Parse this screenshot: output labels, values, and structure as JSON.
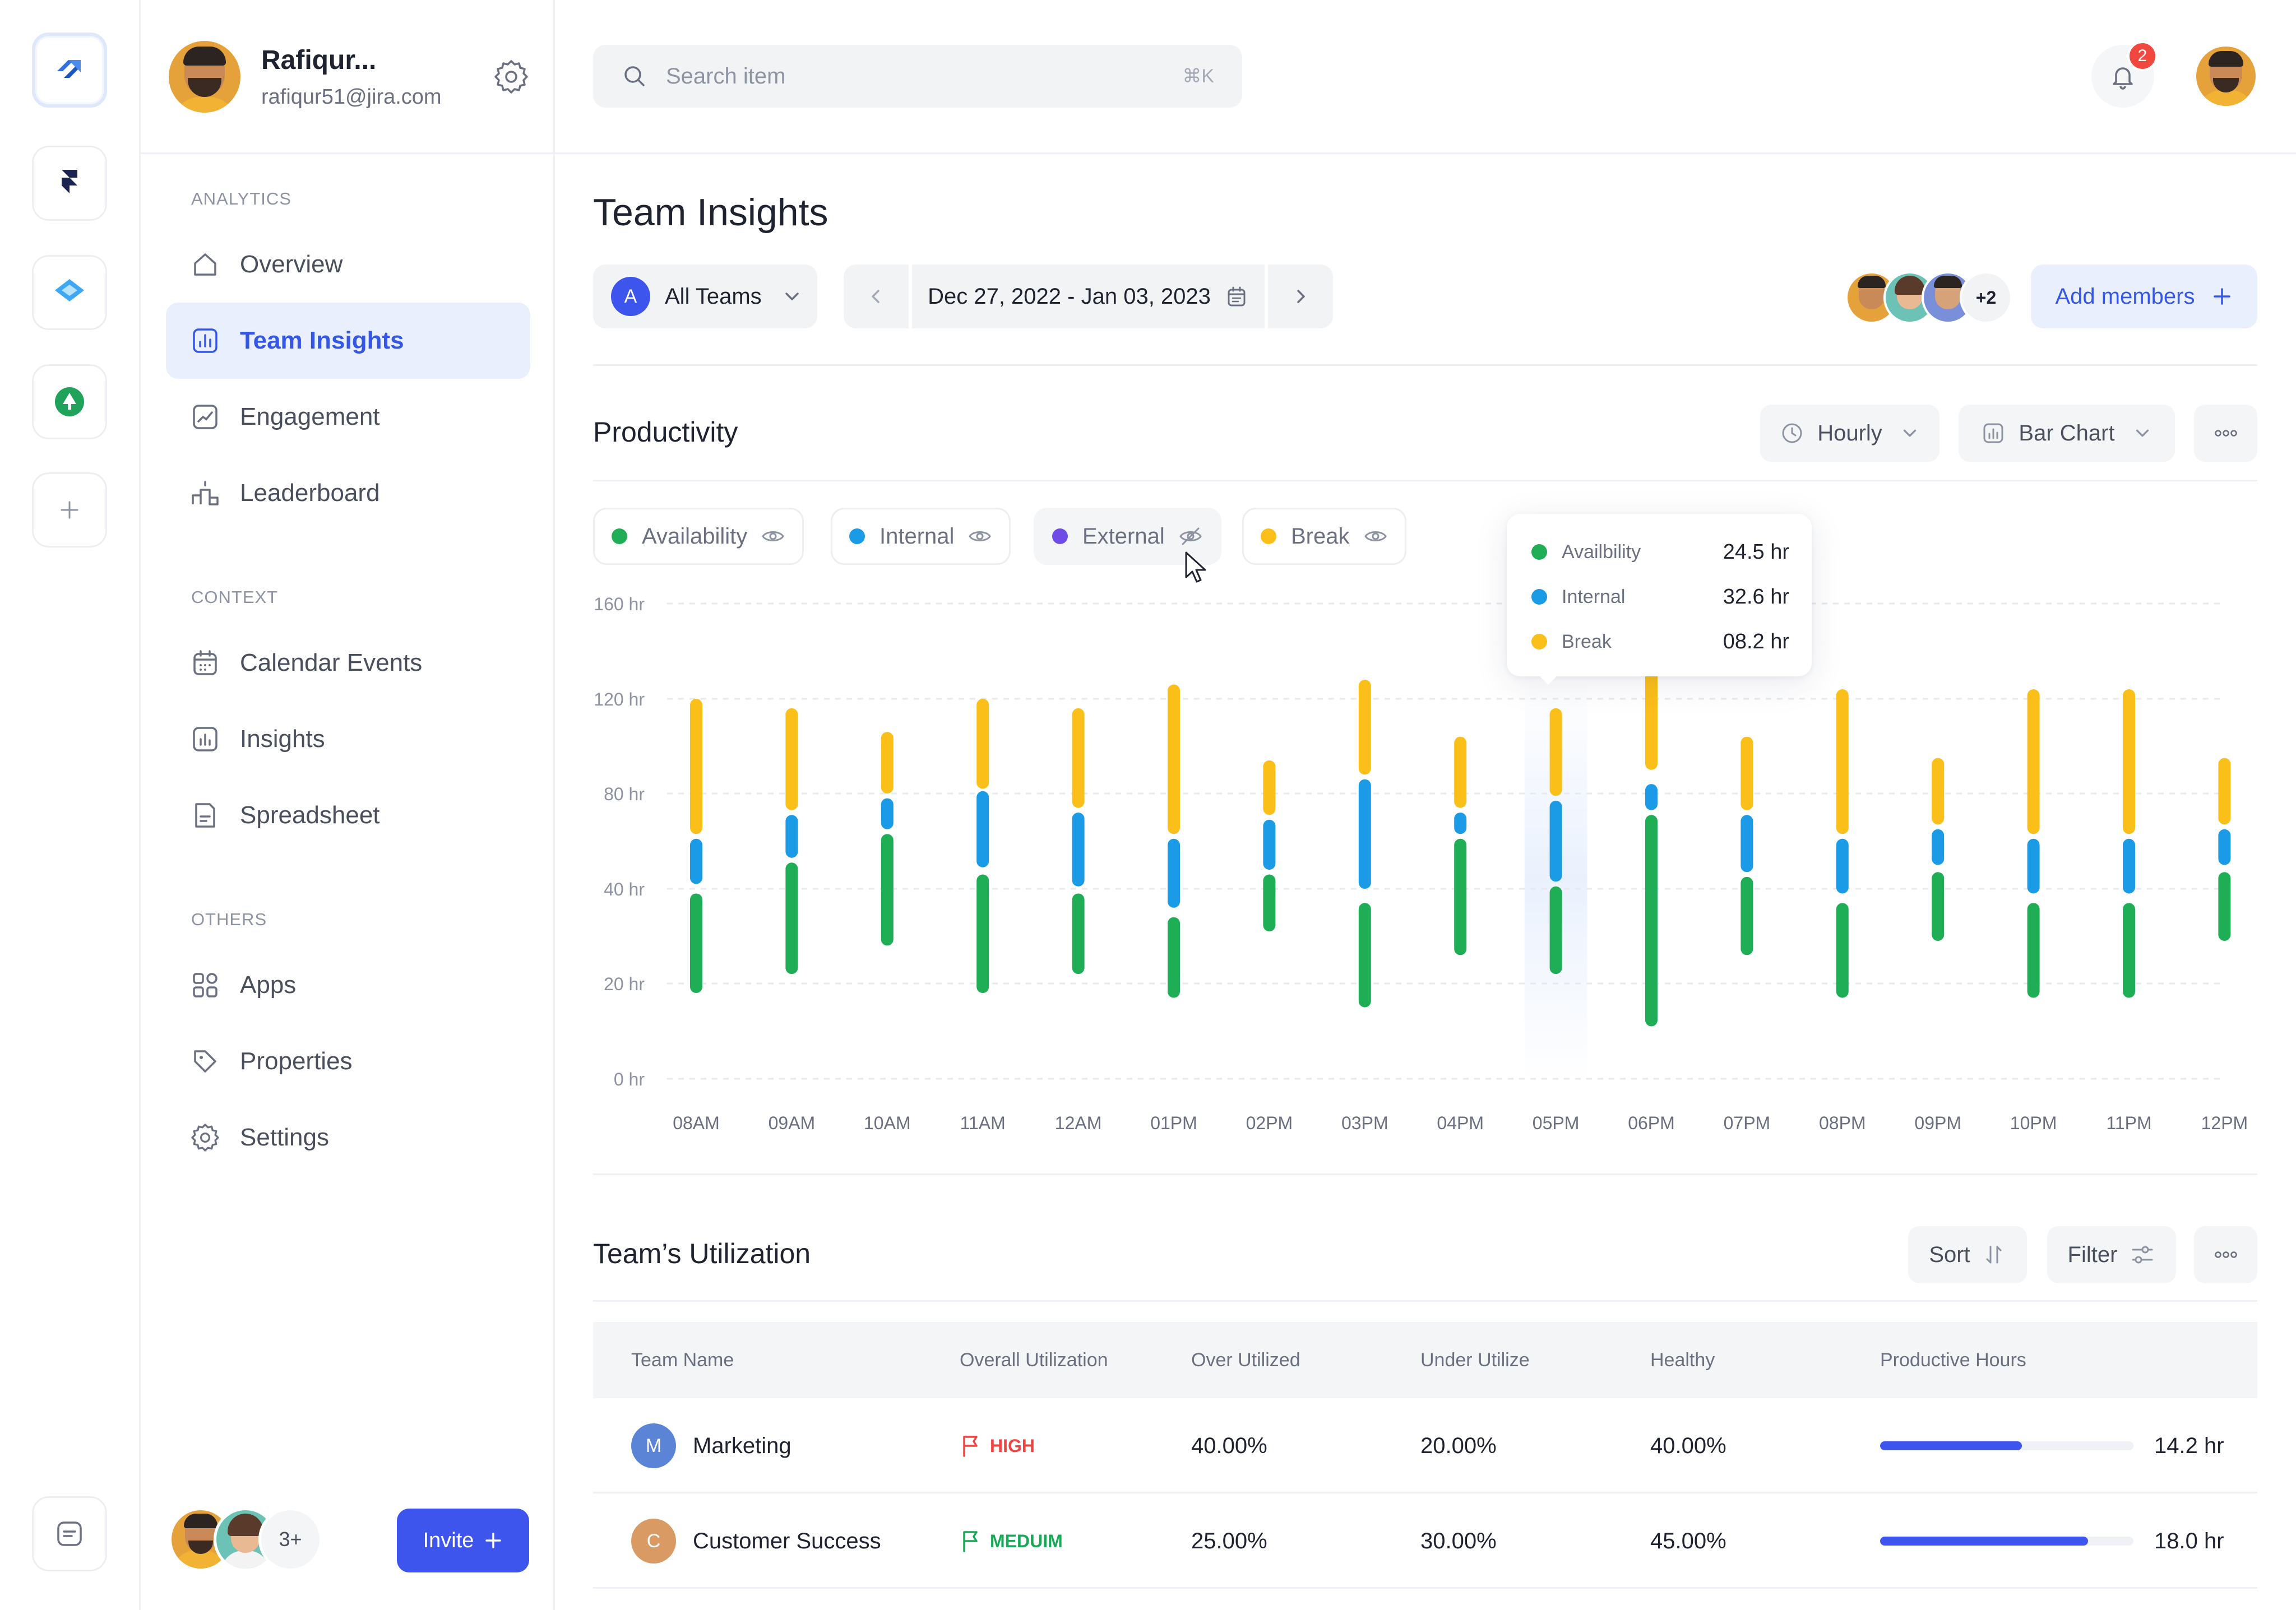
{
  "user": {
    "name": "Rafiqur...",
    "email": "rafiqur51@jira.com"
  },
  "search": {
    "placeholder": "Search item",
    "shortcut": "⌘K"
  },
  "notifications": {
    "count": "2"
  },
  "sidebar": {
    "sections": [
      {
        "label": "ANALYTICS",
        "items": [
          {
            "label": "Overview",
            "icon": "home-icon"
          },
          {
            "label": "Team Insights",
            "icon": "chart-square-icon",
            "active": true
          },
          {
            "label": "Engagement",
            "icon": "trend-icon"
          },
          {
            "label": "Leaderboard",
            "icon": "podium-icon"
          }
        ]
      },
      {
        "label": "CONTEXT",
        "items": [
          {
            "label": "Calendar Events",
            "icon": "calendar-icon"
          },
          {
            "label": "Insights",
            "icon": "bar-square-icon"
          },
          {
            "label": "Spreadsheet",
            "icon": "document-icon"
          }
        ]
      },
      {
        "label": "OTHERS",
        "items": [
          {
            "label": "Apps",
            "icon": "apps-grid-icon"
          },
          {
            "label": "Properties",
            "icon": "tag-icon"
          },
          {
            "label": "Settings",
            "icon": "gear-icon"
          }
        ]
      }
    ],
    "team_more": "3+",
    "invite_label": "Invite"
  },
  "page": {
    "title": "Team Insights",
    "team_letter": "A",
    "team_label": "All Teams",
    "date_range": "Dec 27, 2022 - Jan 03, 2023",
    "members_more": "+2",
    "add_members_label": "Add members"
  },
  "productivity": {
    "title": "Productivity",
    "interval_label": "Hourly",
    "chart_type_label": "Bar Chart",
    "legend": [
      {
        "label": "Availability",
        "color": "#1fae55",
        "visible": true
      },
      {
        "label": "Internal",
        "color": "#1b9be6",
        "visible": true
      },
      {
        "label": "External",
        "color": "#6f4ce8",
        "visible": false
      },
      {
        "label": "Break",
        "color": "#fbbf1a",
        "visible": true
      }
    ],
    "tooltip": {
      "rows": [
        {
          "label": "Availbility",
          "value": "24.5 hr",
          "color": "#1fae55"
        },
        {
          "label": "Internal",
          "value": "32.6 hr",
          "color": "#1b9be6"
        },
        {
          "label": "Break",
          "value": "08.2 hr",
          "color": "#fbbf1a"
        }
      ]
    }
  },
  "chart_data": {
    "type": "bar",
    "stacked": true,
    "highlighted_category": "05PM",
    "ylim": [
      0,
      160
    ],
    "y_ticks": [
      "0 hr",
      "20 hr",
      "40 hr",
      "80 hr",
      "120 hr",
      "160 hr"
    ],
    "grid": true,
    "categories": [
      "08AM",
      "09AM",
      "10AM",
      "11AM",
      "12AM",
      "01PM",
      "02PM",
      "03PM",
      "04PM",
      "05PM",
      "06PM",
      "07PM",
      "08PM",
      "09PM",
      "10PM",
      "11PM",
      "12PM"
    ],
    "series": [
      {
        "name": "Availability",
        "color": "#1fae55",
        "values": [
          [
            18,
            39
          ],
          [
            22,
            51
          ],
          [
            28,
            63
          ],
          [
            18,
            46
          ],
          [
            22,
            39
          ],
          [
            17,
            34
          ],
          [
            31,
            46
          ],
          [
            15,
            37
          ],
          [
            26,
            61
          ],
          [
            22,
            41
          ],
          [
            11,
            71
          ],
          [
            26,
            45
          ],
          [
            17,
            37
          ],
          [
            29,
            47
          ],
          [
            17,
            37
          ],
          [
            17,
            37
          ],
          [
            29,
            47
          ]
        ]
      },
      {
        "name": "Internal",
        "color": "#1b9be6",
        "values": [
          [
            42,
            61
          ],
          [
            53,
            71
          ],
          [
            65,
            78
          ],
          [
            49,
            81
          ],
          [
            41,
            72
          ],
          [
            36,
            61
          ],
          [
            48,
            69
          ],
          [
            40,
            86
          ],
          [
            63,
            72
          ],
          [
            43,
            77
          ],
          [
            73,
            84
          ],
          [
            47,
            71
          ],
          [
            39,
            61
          ],
          [
            50,
            65
          ],
          [
            39,
            61
          ],
          [
            39,
            61
          ],
          [
            50,
            65
          ]
        ]
      },
      {
        "name": "Break",
        "color": "#fbbf1a",
        "values": [
          [
            63,
            120
          ],
          [
            73,
            116
          ],
          [
            80,
            106
          ],
          [
            82,
            120
          ],
          [
            74,
            116
          ],
          [
            63,
            126
          ],
          [
            71,
            94
          ],
          [
            88,
            128
          ],
          [
            74,
            104
          ],
          [
            79,
            116
          ],
          [
            90,
            140
          ],
          [
            73,
            104
          ],
          [
            63,
            124
          ],
          [
            67,
            95
          ],
          [
            63,
            124
          ],
          [
            63,
            124
          ],
          [
            67,
            95
          ]
        ]
      }
    ]
  },
  "utilization": {
    "title": "Team’s Utilization",
    "sort_label": "Sort",
    "filter_label": "Filter",
    "columns": [
      "Team Name",
      "Overall Utilization",
      "Over Utilized",
      "Under Utilize",
      "Healthy",
      "Productive Hours"
    ],
    "rows": [
      {
        "letter": "M",
        "name": "Marketing",
        "letter_color": "#5b84d6",
        "flag": "HIGH",
        "flag_color": "#ef4444",
        "over": "40.00%",
        "under": "20.00%",
        "healthy": "40.00%",
        "progress": 0.56,
        "hours": "14.2 hr"
      },
      {
        "letter": "C",
        "name": "Customer Success",
        "letter_color": "#d99a63",
        "flag": "MEDUIM",
        "flag_color": "#18a957",
        "over": "25.00%",
        "under": "30.00%",
        "healthy": "45.00%",
        "progress": 0.82,
        "hours": "18.0 hr"
      }
    ]
  }
}
